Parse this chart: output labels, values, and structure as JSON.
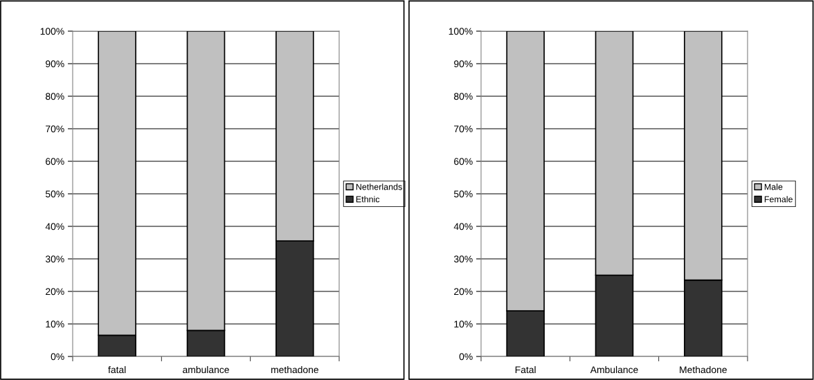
{
  "chart_data": [
    {
      "type": "bar",
      "stacked": true,
      "categories": [
        "fatal",
        "ambulance",
        "methadone"
      ],
      "series": [
        {
          "name": "Ethnic",
          "color": "#333333",
          "values": [
            6.5,
            8,
            35.5
          ]
        },
        {
          "name": "Netherlands",
          "color": "#c0c0c0",
          "values": [
            93.5,
            92,
            64.5
          ]
        }
      ],
      "ylim": [
        0,
        100
      ],
      "yticks": [
        {
          "value": 0,
          "label": "0%"
        },
        {
          "value": 10,
          "label": "10%"
        },
        {
          "value": 20,
          "label": "20%"
        },
        {
          "value": 30,
          "label": "30%"
        },
        {
          "value": 40,
          "label": "40%"
        },
        {
          "value": 50,
          "label": "50%"
        },
        {
          "value": 60,
          "label": "60%"
        },
        {
          "value": 70,
          "label": "70%"
        },
        {
          "value": 80,
          "label": "80%"
        },
        {
          "value": 90,
          "label": "90%"
        },
        {
          "value": 100,
          "label": "100%"
        }
      ],
      "grid": "y",
      "legend": "right"
    },
    {
      "type": "bar",
      "stacked": true,
      "categories": [
        "Fatal",
        "Ambulance",
        "Methadone"
      ],
      "series": [
        {
          "name": "Female",
          "color": "#333333",
          "values": [
            14,
            25,
            23.5
          ]
        },
        {
          "name": "Male",
          "color": "#c0c0c0",
          "values": [
            86,
            75,
            76.5
          ]
        }
      ],
      "ylim": [
        0,
        100
      ],
      "yticks": [
        {
          "value": 0,
          "label": "0%"
        },
        {
          "value": 10,
          "label": "10%"
        },
        {
          "value": 20,
          "label": "20%"
        },
        {
          "value": 30,
          "label": "30%"
        },
        {
          "value": 40,
          "label": "40%"
        },
        {
          "value": 50,
          "label": "50%"
        },
        {
          "value": 60,
          "label": "60%"
        },
        {
          "value": 70,
          "label": "70%"
        },
        {
          "value": 80,
          "label": "80%"
        },
        {
          "value": 90,
          "label": "90%"
        },
        {
          "value": 100,
          "label": "100%"
        }
      ],
      "grid": "y",
      "legend": "right"
    }
  ]
}
